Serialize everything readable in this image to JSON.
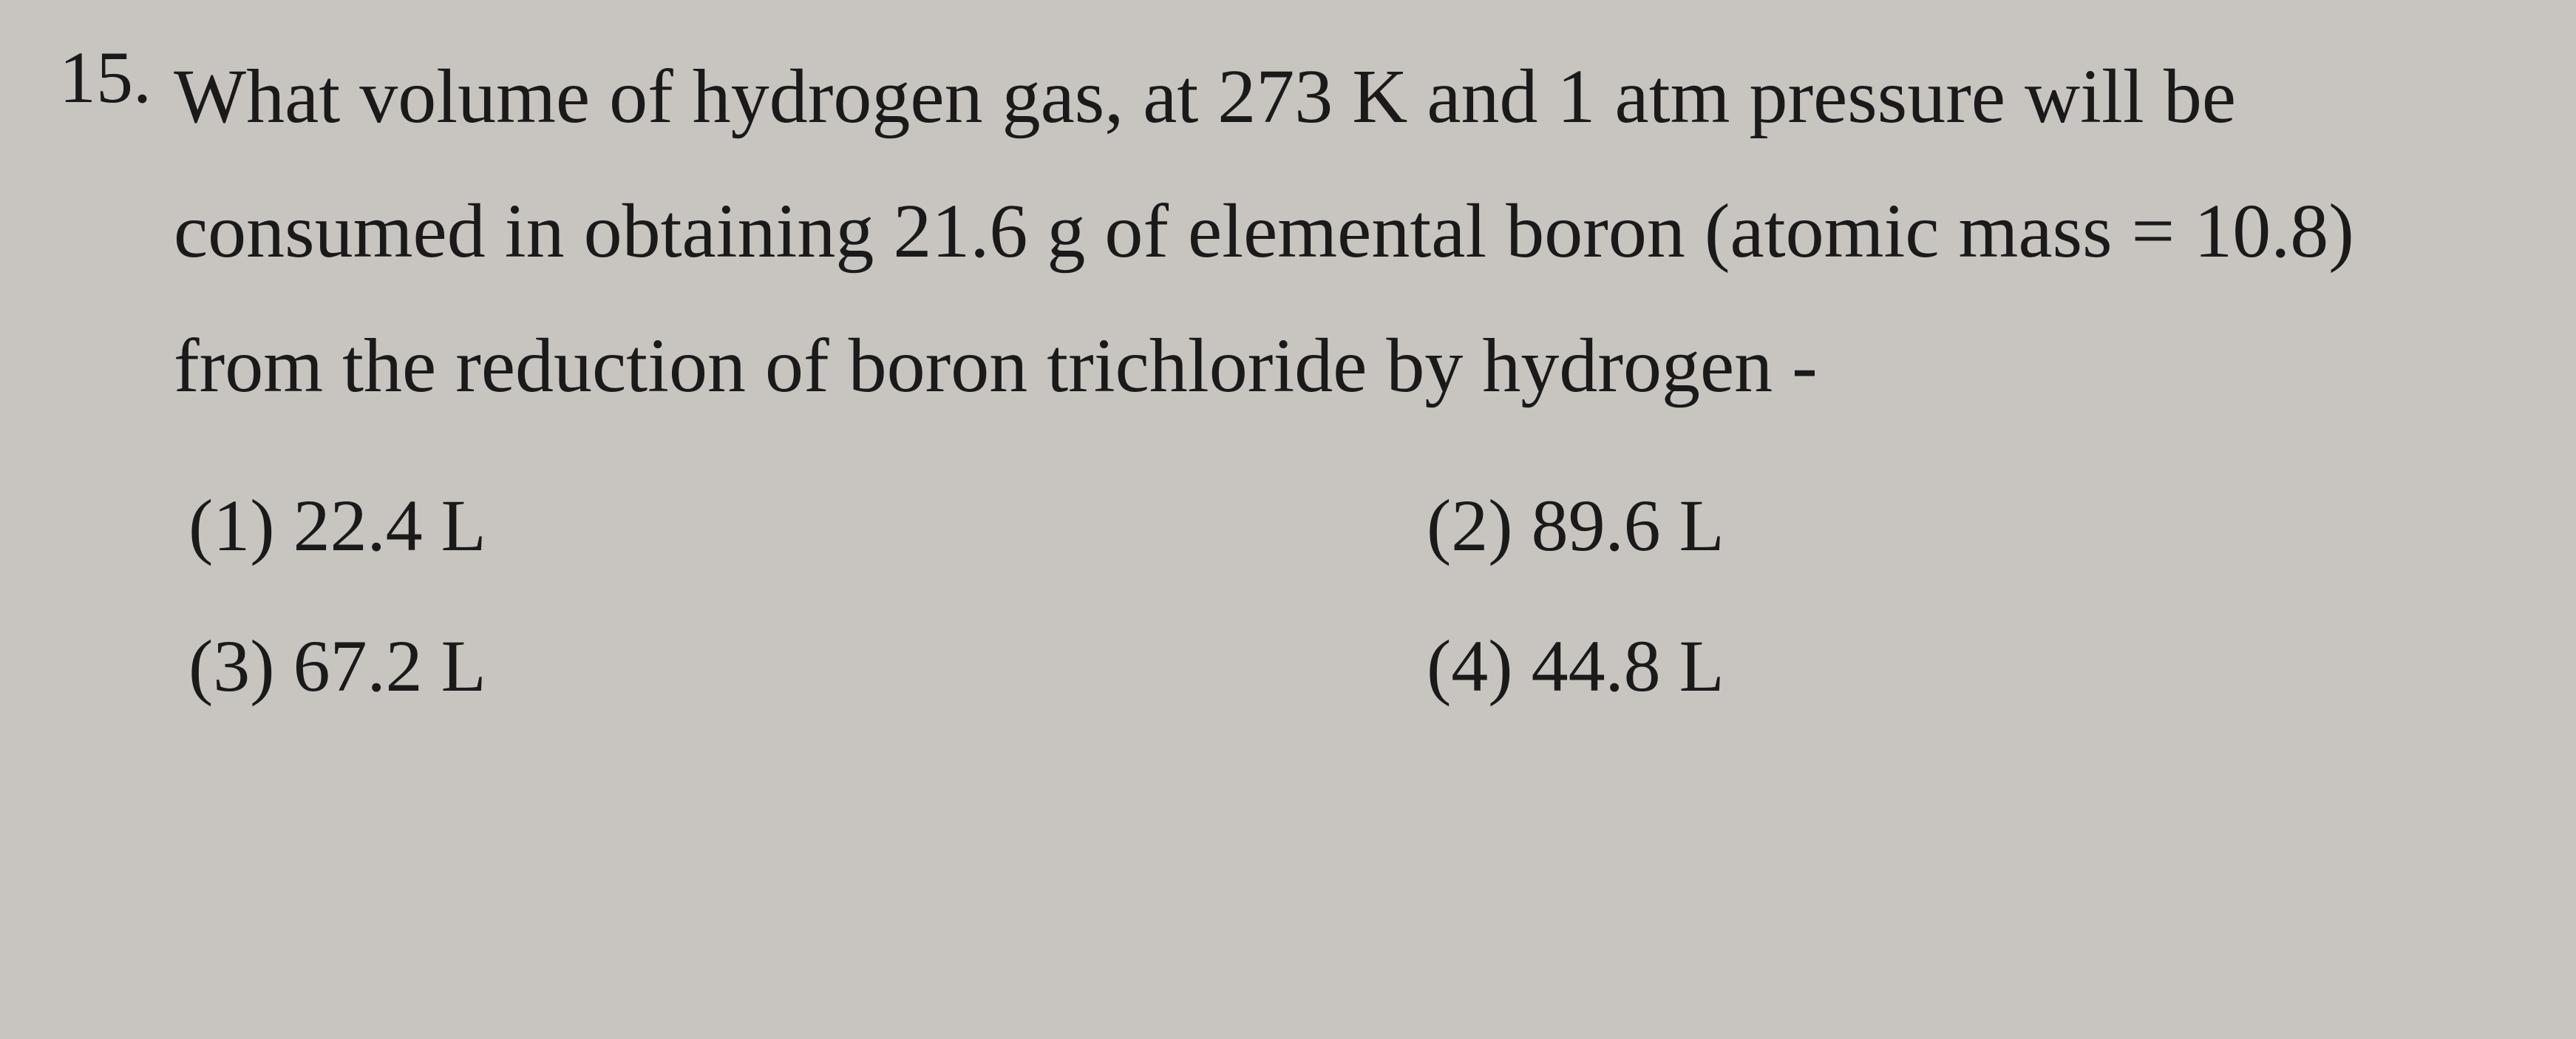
{
  "question": {
    "number": "15.",
    "text": "What volume of hydrogen gas, at 273 K and 1 atm pressure will be consumed in obtaining 21.6 g of elemental boron (atomic mass = 10.8) from the reduction of boron trichloride by hydrogen -"
  },
  "options": {
    "opt1": "(1) 22.4 L",
    "opt2": "(2) 89.6 L",
    "opt3": "(3) 67.2 L",
    "opt4": "(4) 44.8 L"
  },
  "styling": {
    "background_color": "#c8c5c0",
    "text_color": "#1a1a1a",
    "question_fontsize": 104,
    "option_fontsize": 100,
    "number_fontsize": 100,
    "line_height": 1.75,
    "font_family": "Georgia, Times New Roman, serif"
  }
}
